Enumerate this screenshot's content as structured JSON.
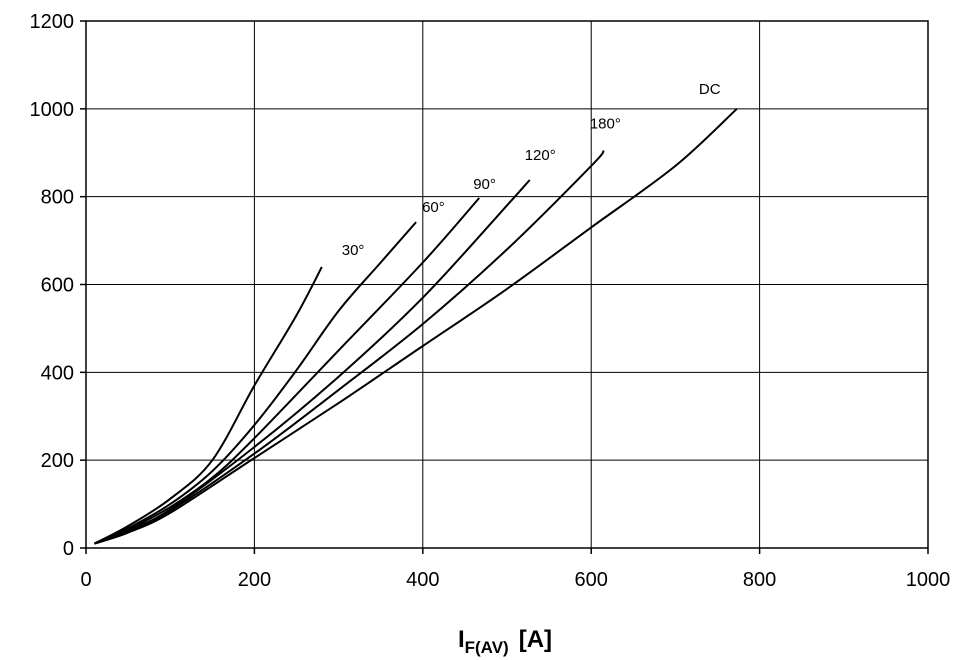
{
  "chart_data": {
    "type": "line",
    "title": "",
    "xlabel": {
      "main": "I",
      "subscript": "F(AV)",
      "unit": "[A]"
    },
    "ylabel": "",
    "xlim": [
      0,
      1000
    ],
    "ylim": [
      0,
      1200
    ],
    "xticks": [
      0,
      200,
      400,
      600,
      800,
      1000
    ],
    "yticks": [
      0,
      200,
      400,
      600,
      800,
      1000,
      1200
    ],
    "grid": true,
    "series": [
      {
        "name": "30°",
        "points": [
          [
            10,
            10
          ],
          [
            50,
            50
          ],
          [
            100,
            112
          ],
          [
            150,
            200
          ],
          [
            200,
            370
          ],
          [
            250,
            530
          ],
          [
            280,
            640
          ]
        ]
      },
      {
        "name": "60°",
        "points": [
          [
            10,
            10
          ],
          [
            50,
            45
          ],
          [
            100,
            100
          ],
          [
            150,
            175
          ],
          [
            200,
            280
          ],
          [
            250,
            405
          ],
          [
            300,
            540
          ],
          [
            350,
            650
          ],
          [
            392,
            742
          ]
        ]
      },
      {
        "name": "90°",
        "points": [
          [
            10,
            10
          ],
          [
            50,
            42
          ],
          [
            100,
            93
          ],
          [
            150,
            160
          ],
          [
            200,
            250
          ],
          [
            300,
            450
          ],
          [
            400,
            650
          ],
          [
            467,
            797
          ]
        ]
      },
      {
        "name": "120°",
        "points": [
          [
            10,
            10
          ],
          [
            50,
            40
          ],
          [
            100,
            88
          ],
          [
            200,
            230
          ],
          [
            300,
            390
          ],
          [
            400,
            570
          ],
          [
            500,
            780
          ],
          [
            527,
            838
          ]
        ]
      },
      {
        "name": "180°",
        "points": [
          [
            10,
            10
          ],
          [
            50,
            38
          ],
          [
            100,
            85
          ],
          [
            200,
            215
          ],
          [
            300,
            360
          ],
          [
            400,
            510
          ],
          [
            500,
            680
          ],
          [
            600,
            870
          ],
          [
            615,
            905
          ]
        ]
      },
      {
        "name": "DC",
        "points": [
          [
            10,
            10
          ],
          [
            50,
            35
          ],
          [
            100,
            80
          ],
          [
            200,
            205
          ],
          [
            300,
            330
          ],
          [
            400,
            460
          ],
          [
            500,
            590
          ],
          [
            600,
            730
          ],
          [
            700,
            870
          ],
          [
            773,
            1000
          ]
        ]
      }
    ]
  }
}
